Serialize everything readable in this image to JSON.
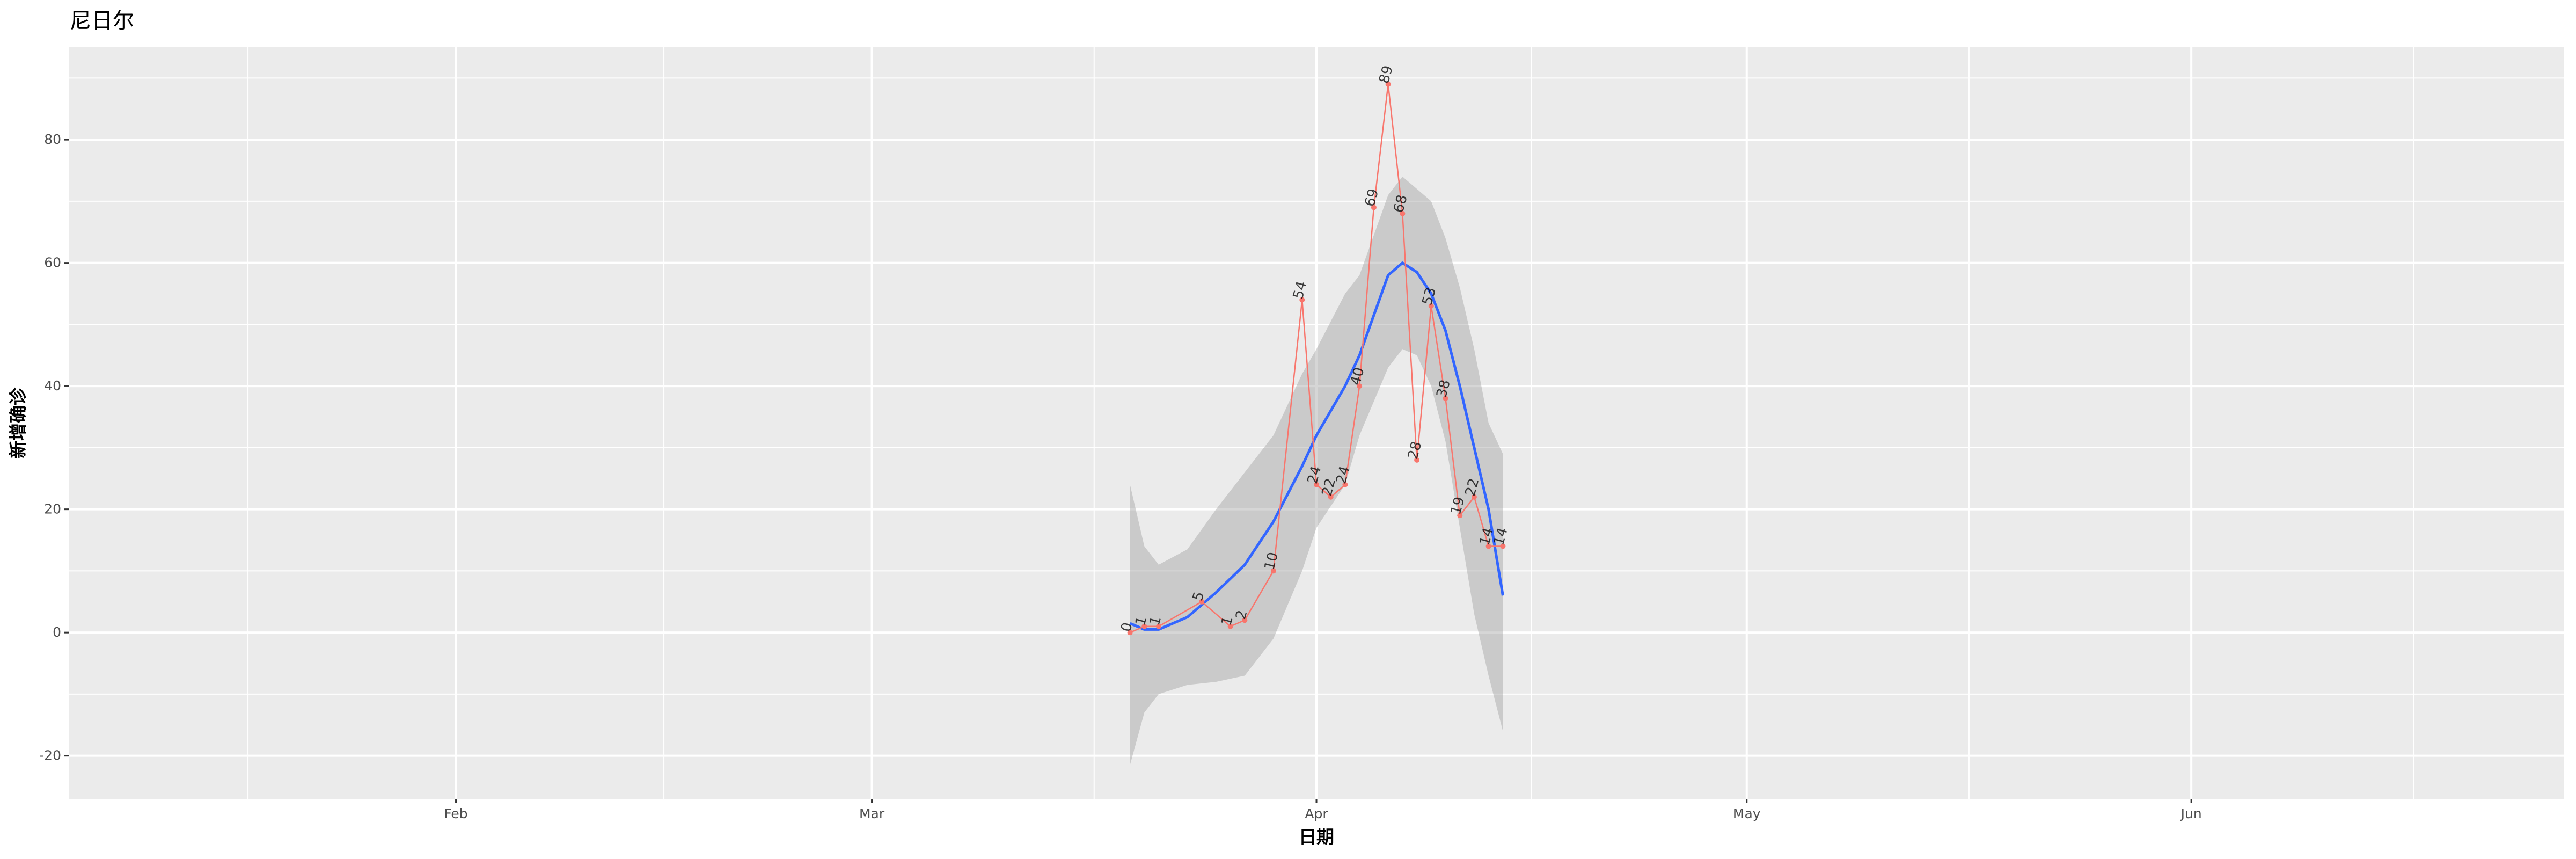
{
  "chart_data": {
    "type": "line",
    "title": "尼日尔",
    "xlabel": "日期",
    "ylabel": "新增确诊",
    "xlim": [
      "2020-01-05",
      "2020-06-27"
    ],
    "ylim": [
      -27,
      95
    ],
    "x_ticks": [
      {
        "date": "2020-02-01",
        "label": "Feb"
      },
      {
        "date": "2020-03-01",
        "label": "Mar"
      },
      {
        "date": "2020-04-01",
        "label": "Apr"
      },
      {
        "date": "2020-05-01",
        "label": "May"
      },
      {
        "date": "2020-06-01",
        "label": "Jun"
      }
    ],
    "y_ticks": [
      -20,
      0,
      20,
      40,
      60,
      80
    ],
    "grid": true,
    "series": [
      {
        "type": "line-points",
        "color": "#F8766D",
        "x": [
          "2020-03-19",
          "2020-03-20",
          "2020-03-21",
          "2020-03-24",
          "2020-03-26",
          "2020-03-27",
          "2020-03-29",
          "2020-03-31",
          "2020-04-01",
          "2020-04-02",
          "2020-04-03",
          "2020-04-04",
          "2020-04-05",
          "2020-04-06",
          "2020-04-07",
          "2020-04-08",
          "2020-04-09",
          "2020-04-10",
          "2020-04-11",
          "2020-04-12",
          "2020-04-13",
          "2020-04-14"
        ],
        "y": [
          0,
          1,
          1,
          5,
          1,
          2,
          10,
          54,
          24,
          22,
          24,
          40,
          69,
          89,
          68,
          28,
          53,
          38,
          19,
          22,
          14,
          14
        ]
      },
      {
        "type": "smooth",
        "color": "#3366FF",
        "band_color": "#999999",
        "x": [
          "2020-03-19",
          "2020-03-20",
          "2020-03-21",
          "2020-03-23",
          "2020-03-25",
          "2020-03-27",
          "2020-03-29",
          "2020-03-31",
          "2020-04-01",
          "2020-04-03",
          "2020-04-04",
          "2020-04-06",
          "2020-04-07",
          "2020-04-08",
          "2020-04-09",
          "2020-04-10",
          "2020-04-11",
          "2020-04-12",
          "2020-04-13",
          "2020-04-14"
        ],
        "y": [
          1.5,
          0.5,
          0.5,
          2.5,
          6.5,
          11,
          18,
          27,
          32,
          40,
          45,
          58,
          60,
          58.5,
          55,
          49,
          40,
          30,
          20,
          6
        ],
        "lower": [
          -21.5,
          -13,
          -10,
          -8.5,
          -8,
          -7,
          -1,
          10,
          17,
          24,
          32,
          43,
          46,
          45,
          40,
          31,
          17,
          3,
          -7,
          -16
        ],
        "upper": [
          24,
          14,
          11,
          13.5,
          20,
          26,
          32,
          42,
          46,
          55,
          58,
          71,
          74,
          72,
          70,
          64,
          56,
          46,
          34,
          29
        ]
      }
    ]
  }
}
